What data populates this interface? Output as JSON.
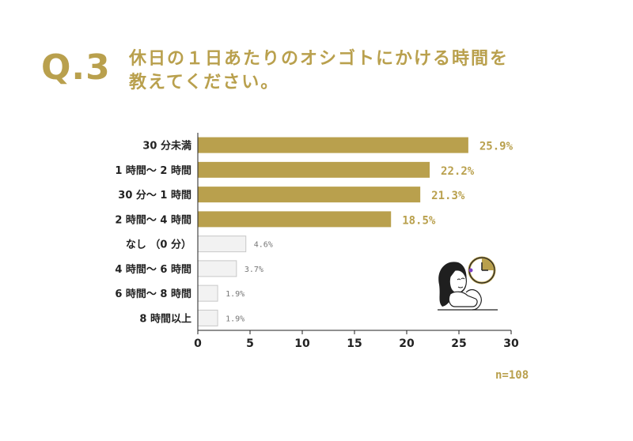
{
  "question": {
    "badge": "Q.3",
    "line1": "休日の１日あたりのオシゴトにかける時間を",
    "line2": "教えてください。"
  },
  "sample_size": "n=108",
  "colors": {
    "accent": "#b9a04d",
    "low_fill": "#f2f2f2",
    "low_stroke": "#c8c8c8"
  },
  "chart_data": {
    "type": "bar",
    "orientation": "horizontal",
    "categories": [
      "30分未満",
      "1時間～2時間",
      "30分～1時間",
      "2時間～4時間",
      "なし（0分）",
      "4時間～6時間",
      "6時間～8時間",
      "8時間以上"
    ],
    "category_labels": [
      "30 分未満",
      "1 時間～ 2 時間",
      "30 分～ 1 時間",
      "2 時間～ 4 時間",
      "なし （0 分）",
      "4 時間～ 6 時間",
      "6 時間～ 8 時間",
      "8 時間以上"
    ],
    "values": [
      25.9,
      22.2,
      21.3,
      18.5,
      4.6,
      3.7,
      1.9,
      1.9
    ],
    "value_labels": [
      "25.9%",
      "22.2%",
      "21.3%",
      "18.5%",
      "4.6%",
      "3.7%",
      "1.9%",
      "1.9%"
    ],
    "highlighted": [
      true,
      true,
      true,
      true,
      false,
      false,
      false,
      false
    ],
    "xlim": [
      0,
      30
    ],
    "xticks": [
      "0",
      "5",
      "10",
      "15",
      "20",
      "25",
      "30"
    ],
    "grid": false
  }
}
